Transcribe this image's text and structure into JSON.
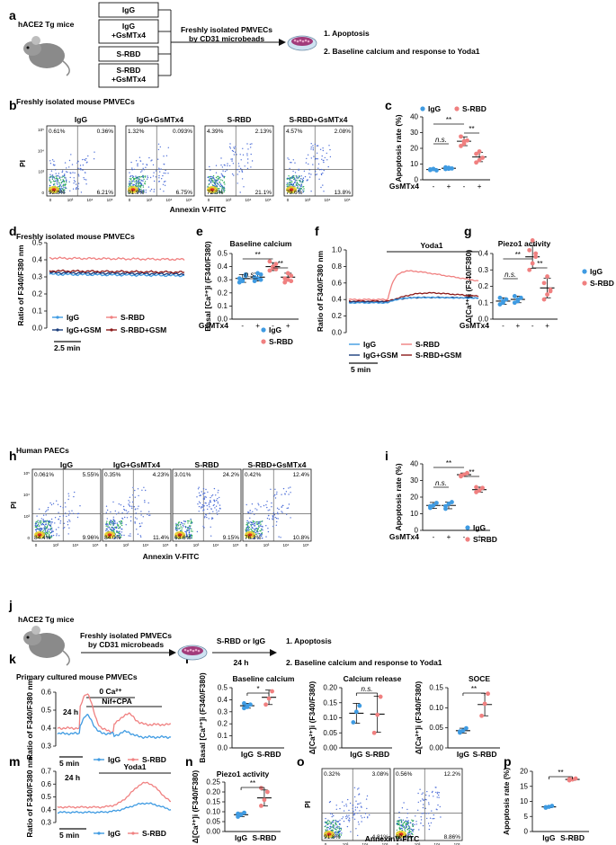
{
  "colors": {
    "igg": "#3f9be2",
    "srbd": "#f08080",
    "igg_gsm": "#1a3d7c",
    "srbd_gsm": "#8b1a1a"
  },
  "panel_labels": [
    "a",
    "b",
    "c",
    "d",
    "e",
    "f",
    "g",
    "h",
    "i",
    "j",
    "k",
    "l",
    "m",
    "n",
    "o",
    "p"
  ],
  "a": {
    "source": "hACE2 Tg mice",
    "groups": [
      "IgG",
      "IgG\n+GsMTx4",
      "S-RBD",
      "S-RBD\n+GsMTx4"
    ],
    "isolation": [
      "Freshly isolated PMVECs",
      "by CD31 microbeads"
    ],
    "readouts": [
      "1. Apoptosis",
      "2. Baseline calcium and response to Yoda1"
    ]
  },
  "b": {
    "title": "Freshly isolated mouse PMVECs",
    "xlabel": "Annexin V-FITC",
    "ylabel": "PI",
    "plots": [
      {
        "name": "IgG",
        "q": [
          "0.61%",
          "0.36%",
          "92.8%",
          "6.21%"
        ]
      },
      {
        "name": "IgG+GsMTx4",
        "q": [
          "1.32%",
          "0.093%",
          "91.9%",
          "6.75%"
        ]
      },
      {
        "name": "S-RBD",
        "q": [
          "4.39%",
          "2.13%",
          "72.3%",
          "21.1%"
        ]
      },
      {
        "name": "S-RBD+GsMTx4",
        "q": [
          "4.57%",
          "2.08%",
          "79.6%",
          "13.8%"
        ]
      }
    ],
    "yticks": [
      "10⁵",
      "10⁴",
      "10³",
      "0"
    ],
    "xticks": [
      "0",
      "10³",
      "10⁴",
      "10⁵"
    ]
  },
  "c": {
    "type": "scatter",
    "ylabel": "Apoptosis rate (%)",
    "yticks": [
      "0",
      "10",
      "20",
      "30",
      "40"
    ],
    "ylim": [
      0,
      40
    ],
    "legend": [
      "IgG",
      "S-RBD"
    ],
    "xlabel": "GsMTx4",
    "xtick": [
      "-",
      "+",
      "-",
      "+"
    ],
    "groups": [
      {
        "mean": 6.5,
        "sd": 0.6,
        "points": [
          6.2,
          6.8,
          6.0,
          6.6,
          6.9
        ]
      },
      {
        "mean": 7.3,
        "sd": 0.6,
        "points": [
          6.8,
          7.6,
          7.2,
          7.9,
          7.0
        ]
      },
      {
        "mean": 24.5,
        "sd": 2.8,
        "points": [
          21.5,
          23.0,
          25.0,
          27.5,
          24.5
        ]
      },
      {
        "mean": 14.5,
        "sd": 3.0,
        "points": [
          11.0,
          12.5,
          14.0,
          16.5,
          18.0
        ]
      }
    ],
    "sig": [
      "**",
      "n.s.",
      "**"
    ]
  },
  "d": {
    "title": "Freshly isolated mouse PMVECs",
    "ylabel": "Ratio of F340/F380 nm",
    "yticks": [
      "0.0",
      "0.1",
      "0.2",
      "0.3",
      "0.4",
      "0.5"
    ],
    "ylim": [
      0,
      0.5
    ],
    "scale": "2.5 min",
    "series": [
      {
        "name": "IgG",
        "level": 0.315
      },
      {
        "name": "S-RBD",
        "level": 0.41
      },
      {
        "name": "IgG+GSM",
        "level": 0.325
      },
      {
        "name": "S-RBD+GSM",
        "level": 0.335
      }
    ]
  },
  "e": {
    "title": "Baseline calcium",
    "ylabel": "Basal [Ca²⁺]i (F340/F380)",
    "yticks": [
      "0.0",
      "0.1",
      "0.2",
      "0.3",
      "0.4",
      "0.5"
    ],
    "ylim": [
      0,
      0.5
    ],
    "xlabel": "GsMTx4",
    "xtick": [
      "-",
      "+",
      "-",
      "+"
    ],
    "legend": [
      "IgG",
      "S-RBD"
    ],
    "sig": [
      "**",
      "n.s.",
      "**"
    ],
    "groups": [
      {
        "mean": 0.31,
        "sd": 0.03,
        "points": [
          0.28,
          0.3,
          0.33,
          0.31,
          0.29,
          0.34
        ]
      },
      {
        "mean": 0.32,
        "sd": 0.03,
        "points": [
          0.29,
          0.31,
          0.34,
          0.32,
          0.35,
          0.3
        ]
      },
      {
        "mean": 0.4,
        "sd": 0.03,
        "points": [
          0.37,
          0.39,
          0.42,
          0.44,
          0.4,
          0.38
        ]
      },
      {
        "mean": 0.32,
        "sd": 0.03,
        "points": [
          0.28,
          0.3,
          0.33,
          0.31,
          0.35,
          0.29
        ]
      }
    ]
  },
  "f": {
    "ylabel": "Ratio of F340/F380 nm",
    "yticks": [
      "0.0",
      "0.2",
      "0.4",
      "0.6",
      "0.8",
      "1.0"
    ],
    "ylim": [
      0,
      1.0
    ],
    "stim": "Yoda1",
    "scale": "5 min",
    "legend": [
      "IgG",
      "S-RBD",
      "IgG+GSM",
      "S-RBD+GSM"
    ]
  },
  "g": {
    "title": "Piezo1 activity",
    "ylabel": "Δ[Ca²⁺]i (F340/F380)",
    "yticks": [
      "0.0",
      "0.1",
      "0.2",
      "0.3",
      "0.4"
    ],
    "ylim": [
      0,
      0.4
    ],
    "xlabel": "GsMTx4",
    "xtick": [
      "-",
      "+",
      "-",
      "+"
    ],
    "legend": [
      "IgG",
      "S-RBD"
    ],
    "sig": [
      "**",
      "n.s.",
      "**"
    ],
    "groups": [
      {
        "mean": 0.11,
        "sd": 0.02,
        "points": [
          0.09,
          0.1,
          0.12,
          0.13,
          0.11
        ]
      },
      {
        "mean": 0.12,
        "sd": 0.02,
        "points": [
          0.1,
          0.11,
          0.13,
          0.14,
          0.12
        ]
      },
      {
        "mean": 0.38,
        "sd": 0.07,
        "points": [
          0.3,
          0.34,
          0.38,
          0.42,
          0.48,
          0.4
        ]
      },
      {
        "mean": 0.19,
        "sd": 0.06,
        "points": [
          0.12,
          0.15,
          0.18,
          0.22,
          0.26,
          0.17
        ]
      }
    ]
  },
  "h": {
    "title": "Human PAECs",
    "xlabel": "Annexin V-FITC",
    "ylabel": "PI",
    "plots": [
      {
        "name": "IgG",
        "q": [
          "0.061%",
          "5.55%",
          "84.4%",
          "9.96%"
        ]
      },
      {
        "name": "IgG+GsMTx4",
        "q": [
          "0.35%",
          "4.23%",
          "84.0%",
          "11.4%"
        ]
      },
      {
        "name": "S-RBD",
        "q": [
          "3.01%",
          "24.2%",
          "63.6%",
          "9.15%"
        ]
      },
      {
        "name": "S-RBD+GsMTx4",
        "q": [
          "0.42%",
          "12.4%",
          "76.3%",
          "10.8%"
        ]
      }
    ]
  },
  "i": {
    "ylabel": "Apoptosis rate (%)",
    "yticks": [
      "0",
      "10",
      "20",
      "30",
      "40"
    ],
    "ylim": [
      0,
      40
    ],
    "xlabel": "GsMTx4",
    "xtick": [
      "-",
      "+",
      "-",
      "+"
    ],
    "legend": [
      "IgG",
      "S-RBD"
    ],
    "sig": [
      "**",
      "n.s.",
      "**"
    ],
    "groups": [
      {
        "mean": 15,
        "sd": 1.8,
        "points": [
          13.5,
          15.0,
          16.5,
          14.5
        ]
      },
      {
        "mean": 15,
        "sd": 2.0,
        "points": [
          13.0,
          16.0,
          17.0,
          14.5
        ]
      },
      {
        "mean": 33.5,
        "sd": 1.0,
        "points": [
          32.5,
          33.5,
          34.5,
          33.0
        ]
      },
      {
        "mean": 24.5,
        "sd": 1.5,
        "points": [
          23.0,
          24.0,
          25.5,
          26.0
        ]
      }
    ]
  },
  "j": {
    "source": "hACE2 Tg mice",
    "isolation": [
      "Freshly isolated PMVECs",
      "by CD31 microbeads"
    ],
    "treatment": "S-RBD or IgG",
    "duration": "24 h",
    "readouts": [
      "1. Apoptosis",
      "2. Baseline calcium and response to Yoda1"
    ]
  },
  "k": {
    "title": "Primary cultured mouse PMVECs",
    "ylabel": "Ratio of F340/F380 nm",
    "yticks": [
      "0.3",
      "0.4",
      "0.5",
      "0.6"
    ],
    "ylim": [
      0.3,
      0.6
    ],
    "bath": "0 Ca²⁺",
    "stim": "Nif+CPA",
    "time": "24 h",
    "scale": "5 min",
    "legend": [
      "IgG",
      "S-RBD"
    ]
  },
  "l": {
    "panels": [
      {
        "title": "Baseline calcium",
        "ylabel": "Basal [Ca²⁺]i (F340/F380)",
        "yticks": [
          "0.0",
          "0.1",
          "0.2",
          "0.3",
          "0.4",
          "0.5"
        ],
        "ylim": [
          0,
          0.5
        ],
        "sig": "*",
        "xtick": [
          "IgG",
          "S-RBD"
        ],
        "groups": [
          {
            "mean": 0.35,
            "sd": 0.02,
            "points": [
              0.33,
              0.35,
              0.36,
              0.37,
              0.34
            ]
          },
          {
            "mean": 0.42,
            "sd": 0.06,
            "points": [
              0.36,
              0.41,
              0.47
            ]
          }
        ]
      },
      {
        "title": "Calcium release",
        "ylabel": "Δ[Ca²⁺]i (F340/F380)",
        "yticks": [
          "0.00",
          "0.05",
          "0.10",
          "0.15",
          "0.20"
        ],
        "ylim": [
          0,
          0.2
        ],
        "sig": "n.s.",
        "xtick": [
          "IgG",
          "S-RBD"
        ],
        "groups": [
          {
            "mean": 0.115,
            "sd": 0.033,
            "points": [
              0.085,
              0.12,
              0.14
            ]
          },
          {
            "mean": 0.112,
            "sd": 0.06,
            "points": [
              0.05,
              0.11,
              0.17
            ]
          }
        ]
      },
      {
        "title": "SOCE",
        "ylabel": "Δ[Ca²⁺]i (F340/F380)",
        "yticks": [
          "0.00",
          "0.05",
          "0.10",
          "0.15"
        ],
        "ylim": [
          0,
          0.15
        ],
        "sig": "**",
        "xtick": [
          "IgG",
          "S-RBD"
        ],
        "groups": [
          {
            "mean": 0.043,
            "sd": 0.006,
            "points": [
              0.038,
              0.043,
              0.049,
              0.041
            ]
          },
          {
            "mean": 0.108,
            "sd": 0.028,
            "points": [
              0.08,
              0.11,
              0.135
            ]
          }
        ]
      }
    ]
  },
  "m": {
    "ylabel": "Ratio of F340/F380 nm",
    "yticks": [
      "0.3",
      "0.4",
      "0.5",
      "0.6",
      "0.7"
    ],
    "ylim": [
      0.3,
      0.7
    ],
    "stim": "Yoda1",
    "time": "24 h",
    "scale": "5 min",
    "legend": [
      "IgG",
      "S-RBD"
    ]
  },
  "n": {
    "title": "Piezo1 activity",
    "ylabel": "Δ[Ca²⁺]i (F340/F380)",
    "yticks": [
      "0.00",
      "0.05",
      "0.10",
      "0.15",
      "0.20",
      "0.25"
    ],
    "ylim": [
      0,
      0.25
    ],
    "sig": "**",
    "xtick": [
      "IgG",
      "S-RBD"
    ],
    "groups": [
      {
        "mean": 0.085,
        "sd": 0.01,
        "points": [
          0.075,
          0.085,
          0.095,
          0.09
        ]
      },
      {
        "mean": 0.17,
        "sd": 0.04,
        "points": [
          0.13,
          0.16,
          0.2,
          0.22
        ]
      }
    ]
  },
  "o": {
    "xlabel": "AnnexinV-FITC",
    "ylabel": "PI",
    "plots": [
      {
        "q": [
          "0.32%",
          "3.08%",
          "91.8%",
          "4.81%"
        ]
      },
      {
        "q": [
          "0.56%",
          "12.2%",
          "82.4%",
          "8.86%"
        ]
      }
    ]
  },
  "p": {
    "ylabel": "Apoptosis rate (%)",
    "yticks": [
      "0",
      "5",
      "10",
      "15",
      "20"
    ],
    "ylim": [
      0,
      20
    ],
    "sig": "**",
    "xtick": [
      "IgG",
      "S-RBD"
    ],
    "groups": [
      {
        "mean": 8.2,
        "sd": 0.3,
        "points": [
          7.9,
          8.2,
          8.5,
          8.1
        ]
      },
      {
        "mean": 17.3,
        "sd": 0.3,
        "points": [
          17.0,
          17.3,
          17.6,
          17.4
        ]
      }
    ]
  }
}
